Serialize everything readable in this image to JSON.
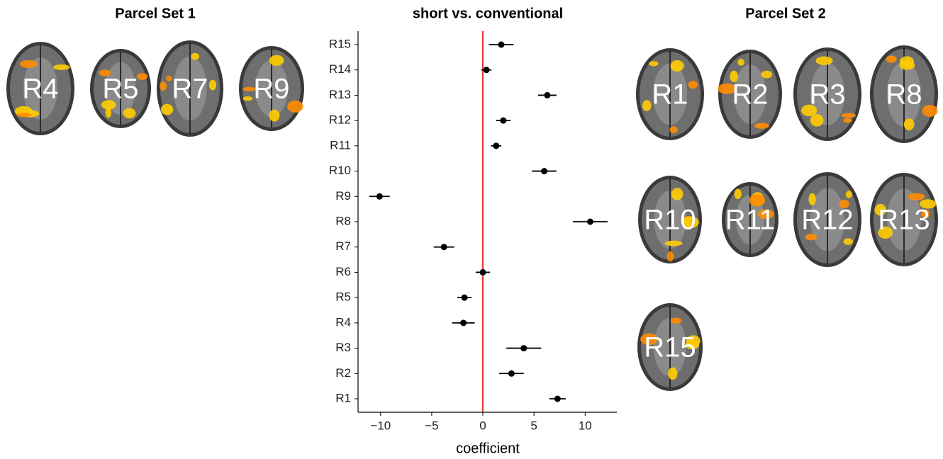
{
  "chart_data": {
    "type": "pointrange",
    "title": "short vs. conventional",
    "x_label": "coefficient",
    "categories": [
      "R1",
      "R2",
      "R3",
      "R4",
      "R5",
      "R6",
      "R7",
      "R8",
      "R9",
      "R10",
      "R11",
      "R12",
      "R13",
      "R14",
      "R15"
    ],
    "values": [
      7.3,
      2.8,
      4.0,
      -1.9,
      -1.8,
      0,
      -3.8,
      10.5,
      -10.1,
      6.0,
      1.3,
      2.0,
      6.3,
      0.35,
      1.8
    ],
    "errors": [
      0.8,
      1.2,
      1.7,
      1.1,
      0.7,
      0.7,
      1.0,
      1.7,
      1.0,
      1.2,
      0.5,
      0.7,
      0.9,
      0.5,
      1.2
    ],
    "color": "#000000",
    "xlim": [
      -12.2,
      13.1
    ],
    "xticks": [
      {
        "value": -10,
        "label": "−10"
      },
      {
        "value": -5,
        "label": "−5"
      },
      0,
      5,
      10
    ],
    "vline": 0,
    "vline_color": "#dd0000"
  },
  "parcel_set_1": {
    "title": "Parcel Set 1",
    "labels": [
      "R4",
      "R5",
      "R7",
      "R9"
    ]
  },
  "parcel_set_2": {
    "title": "Parcel Set 2",
    "labels": [
      "R1",
      "R2",
      "R3",
      "R8",
      "R10",
      "R11",
      "R12",
      "R13",
      "R15"
    ]
  }
}
